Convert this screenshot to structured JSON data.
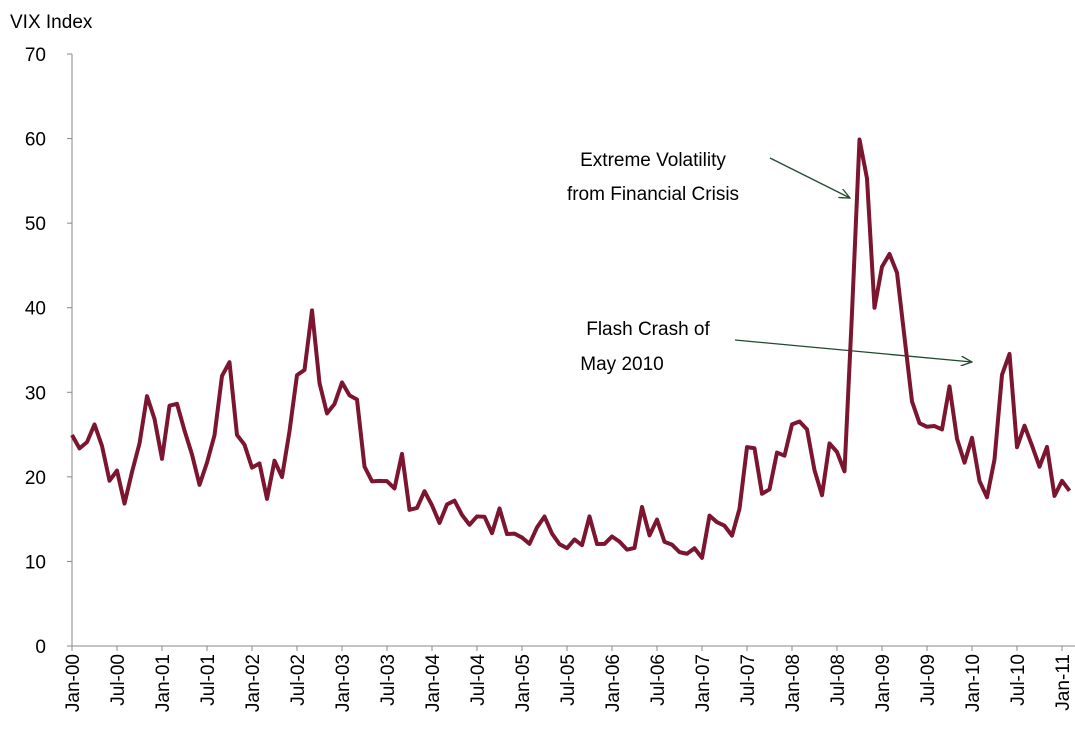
{
  "chart_data": {
    "type": "line",
    "y_label": "VIX Index",
    "categories": [
      "Jan-00",
      null,
      null,
      null,
      null,
      null,
      "Jul-00",
      null,
      null,
      null,
      null,
      null,
      "Jan-01",
      null,
      null,
      null,
      null,
      null,
      "Jul-01",
      null,
      null,
      null,
      null,
      null,
      "Jan-02",
      null,
      null,
      null,
      null,
      null,
      "Jul-02",
      null,
      null,
      null,
      null,
      null,
      "Jan-03",
      null,
      null,
      null,
      null,
      null,
      "Jul-03",
      null,
      null,
      null,
      null,
      null,
      "Jan-04",
      null,
      null,
      null,
      null,
      null,
      "Jul-04",
      null,
      null,
      null,
      null,
      null,
      "Jan-05",
      null,
      null,
      null,
      null,
      null,
      "Jul-05",
      null,
      null,
      null,
      null,
      null,
      "Jan-06",
      null,
      null,
      null,
      null,
      null,
      "Jul-06",
      null,
      null,
      null,
      null,
      null,
      "Jan-07",
      null,
      null,
      null,
      null,
      null,
      "Jul-07",
      null,
      null,
      null,
      null,
      null,
      "Jan-08",
      null,
      null,
      null,
      null,
      null,
      "Jul-08",
      null,
      null,
      null,
      null,
      null,
      "Jan-09",
      null,
      null,
      null,
      null,
      null,
      "Jul-09",
      null,
      null,
      null,
      null,
      null,
      "Jan-10",
      null,
      null,
      null,
      null,
      null,
      "Jul-10",
      null,
      null,
      null,
      null,
      null,
      "Jan-11",
      null
    ],
    "series": [
      {
        "color": "#7b1530",
        "values": [
          24.95,
          23.37,
          24.11,
          26.2,
          23.65,
          19.54,
          20.74,
          16.84,
          20.57,
          23.94,
          29.54,
          26.85,
          22.13,
          28.41,
          28.64,
          25.48,
          22.64,
          19.06,
          21.68,
          24.92,
          31.93,
          33.56,
          24.96,
          23.8,
          21.09,
          21.59,
          17.4,
          21.91,
          19.98,
          25.4,
          32.03,
          32.64,
          39.69,
          31.1,
          27.5,
          28.62,
          31.17,
          29.63,
          29.15,
          21.21,
          19.47,
          19.52,
          19.49,
          18.63,
          22.72,
          16.1,
          16.32,
          18.31,
          16.63,
          14.55,
          16.74,
          17.19,
          15.5,
          14.34,
          15.32,
          15.29,
          13.34,
          16.27,
          13.24,
          13.29,
          12.82,
          12.08,
          14.02,
          15.31,
          13.29,
          12.04,
          11.57,
          12.6,
          11.92,
          15.32,
          12.06,
          12.07,
          12.95,
          12.34,
          11.39,
          11.59,
          16.44,
          13.08,
          14.95,
          12.31,
          11.98,
          11.1,
          10.91,
          11.56,
          10.42,
          15.42,
          14.64,
          14.22,
          13.05,
          16.23,
          23.52,
          23.38,
          18.0,
          18.53,
          22.87,
          22.5,
          26.2,
          26.54,
          25.61,
          20.79,
          17.83,
          23.95,
          22.94,
          20.65,
          39.39,
          59.89,
          55.28,
          40.0,
          44.84,
          46.35,
          44.14,
          36.5,
          28.92,
          26.35,
          25.92,
          26.01,
          25.61,
          30.69,
          24.51,
          21.68,
          24.62,
          19.5,
          17.59,
          22.05,
          32.07,
          34.54,
          23.5,
          26.05,
          23.7,
          21.2,
          23.54,
          17.75,
          19.53,
          18.35
        ]
      }
    ],
    "ylim": [
      0,
      70
    ],
    "yticks": [
      0,
      10,
      20,
      30,
      40,
      50,
      60,
      70
    ],
    "grid": false,
    "annotations": [
      {
        "lines": [
          "Extreme Volatility",
          "from Financial Crisis"
        ]
      },
      {
        "lines": [
          "Flash Crash of",
          "May 2010"
        ]
      }
    ]
  }
}
